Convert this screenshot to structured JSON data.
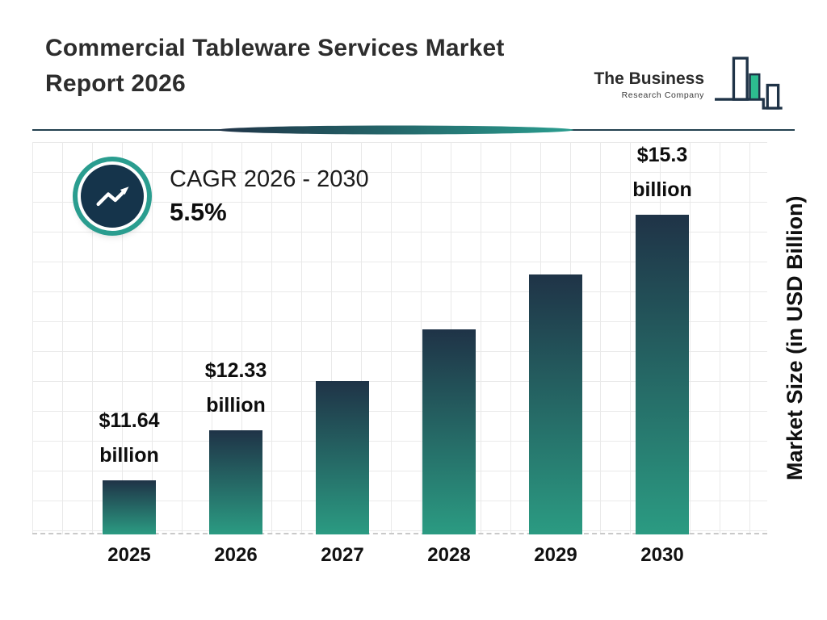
{
  "header": {
    "title": "Commercial Tableware Services Market Report 2026",
    "logo": {
      "line1": "The Business",
      "line2": "Research Company"
    }
  },
  "cagr": {
    "label": "CAGR 2026 - 2030",
    "value": "5.5%"
  },
  "chart_data": {
    "type": "bar",
    "categories": [
      "2025",
      "2026",
      "2027",
      "2028",
      "2029",
      "2030"
    ],
    "values": [
      11.64,
      12.33,
      13.01,
      13.72,
      14.48,
      15.3
    ],
    "value_labels": [
      "$11.64 billion",
      "$12.33 billion",
      "",
      "",
      "",
      "$15.3 billion"
    ],
    "ylabel": "Market Size (in USD Billion)",
    "xlabel": "",
    "title": "",
    "ylim": [
      10.9,
      16.3
    ],
    "grid": true,
    "legend": "none"
  },
  "colors": {
    "navy": "#1f3347",
    "teal": "#2a9d8f",
    "bar_gradient_top": "#1f3347",
    "bar_gradient_bottom": "#2b9b82",
    "grid_line": "#e9e9e9",
    "text": "#1c1c1c"
  }
}
